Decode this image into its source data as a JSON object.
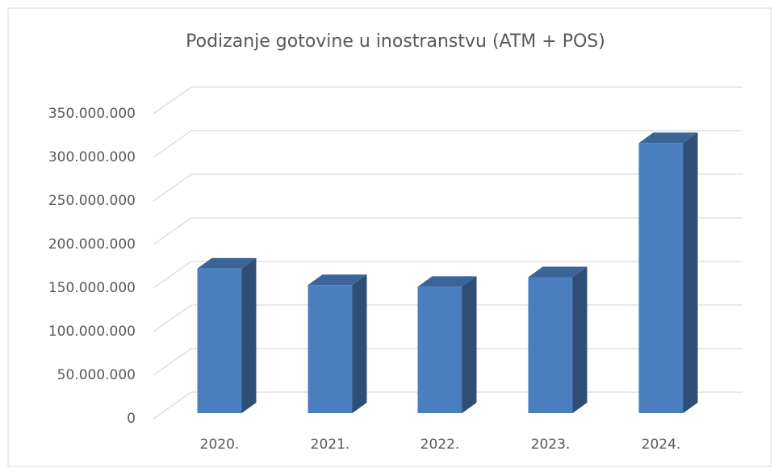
{
  "chart_data": {
    "type": "bar3d",
    "title": "Podizanje gotovine u inostranstvu (ATM + POS)",
    "categories": [
      "2020.",
      "2021.",
      "2022.",
      "2023.",
      "2024."
    ],
    "values": [
      166000000,
      147000000,
      145000000,
      156000000,
      310000000
    ],
    "color": "#4a7ebf",
    "ylim": [
      0,
      350000000
    ],
    "yticks": [
      0,
      {
        "value": 50000000,
        "label": "50.000.000"
      },
      {
        "value": 100000000,
        "label": "100.000.000"
      },
      {
        "value": 150000000,
        "label": "150.000.000"
      },
      {
        "value": 200000000,
        "label": "200.000.000"
      },
      {
        "value": 250000000,
        "label": "250.000.000"
      },
      {
        "value": 300000000,
        "label": "300.000.000"
      },
      {
        "value": 350000000,
        "label": "350.000.000"
      }
    ],
    "grid": true
  }
}
